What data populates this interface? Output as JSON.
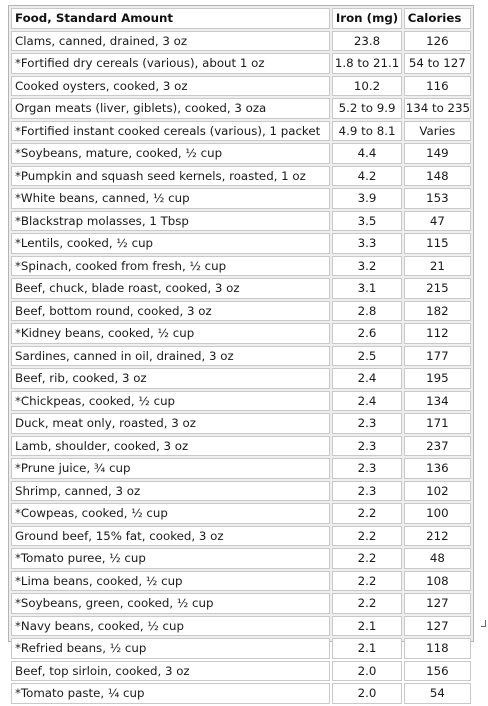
{
  "header": {
    "food": "Food, Standard Amount",
    "iron": "Iron (mg)",
    "calories": "Calories"
  },
  "rows": [
    {
      "food": "Clams, canned, drained, 3 oz",
      "iron": "23.8",
      "calories": "126"
    },
    {
      "food": "*Fortified dry cereals (various), about 1 oz",
      "iron": "1.8 to 21.1",
      "calories": "54 to 127"
    },
    {
      "food": "Cooked oysters, cooked, 3 oz",
      "iron": "10.2",
      "calories": "116"
    },
    {
      "food": "Organ meats (liver, giblets), cooked, 3 oza",
      "iron": "5.2 to 9.9",
      "calories": "134 to 235"
    },
    {
      "food": "*Fortified instant cooked cereals (various), 1 packet",
      "iron": "4.9 to 8.1",
      "calories": "Varies"
    },
    {
      "food": "*Soybeans, mature, cooked, ½ cup",
      "iron": "4.4",
      "calories": "149"
    },
    {
      "food": "*Pumpkin and squash seed kernels, roasted, 1 oz",
      "iron": "4.2",
      "calories": "148"
    },
    {
      "food": "*White beans, canned, ½ cup",
      "iron": "3.9",
      "calories": "153"
    },
    {
      "food": "*Blackstrap molasses, 1 Tbsp",
      "iron": "3.5",
      "calories": "47"
    },
    {
      "food": "*Lentils, cooked, ½ cup",
      "iron": "3.3",
      "calories": "115"
    },
    {
      "food": "*Spinach, cooked from fresh, ½ cup",
      "iron": "3.2",
      "calories": "21"
    },
    {
      "food": "Beef, chuck, blade roast, cooked, 3 oz",
      "iron": "3.1",
      "calories": "215"
    },
    {
      "food": "Beef, bottom round, cooked, 3 oz",
      "iron": "2.8",
      "calories": "182"
    },
    {
      "food": "*Kidney beans, cooked, ½ cup",
      "iron": "2.6",
      "calories": "112"
    },
    {
      "food": "Sardines, canned in oil, drained, 3 oz",
      "iron": "2.5",
      "calories": "177"
    },
    {
      "food": "Beef, rib, cooked, 3 oz",
      "iron": "2.4",
      "calories": "195"
    },
    {
      "food": "*Chickpeas, cooked, ½ cup",
      "iron": "2.4",
      "calories": "134"
    },
    {
      "food": "Duck, meat only, roasted, 3 oz",
      "iron": "2.3",
      "calories": "171"
    },
    {
      "food": "Lamb, shoulder, cooked, 3 oz",
      "iron": "2.3",
      "calories": "237"
    },
    {
      "food": "*Prune juice, ¾ cup",
      "iron": "2.3",
      "calories": "136"
    },
    {
      "food": "Shrimp, canned, 3 oz",
      "iron": "2.3",
      "calories": "102"
    },
    {
      "food": "*Cowpeas, cooked, ½ cup",
      "iron": "2.2",
      "calories": "100"
    },
    {
      "food": "Ground beef, 15% fat, cooked, 3 oz",
      "iron": "2.2",
      "calories": "212"
    },
    {
      "food": "*Tomato puree, ½ cup",
      "iron": "2.2",
      "calories": "48"
    },
    {
      "food": "*Lima beans, cooked, ½ cup",
      "iron": "2.2",
      "calories": "108"
    },
    {
      "food": "*Soybeans, green, cooked, ½ cup",
      "iron": "2.2",
      "calories": "127"
    },
    {
      "food": "*Navy beans, cooked, ½ cup",
      "iron": "2.1",
      "calories": "127"
    },
    {
      "food": "*Refried beans, ½ cup",
      "iron": "2.1",
      "calories": "118"
    },
    {
      "food": "Beef, top sirloin, cooked, 3 oz",
      "iron": "2.0",
      "calories": "156"
    },
    {
      "food": "*Tomato paste, ¼ cup",
      "iron": "2.0",
      "calories": "54"
    }
  ]
}
